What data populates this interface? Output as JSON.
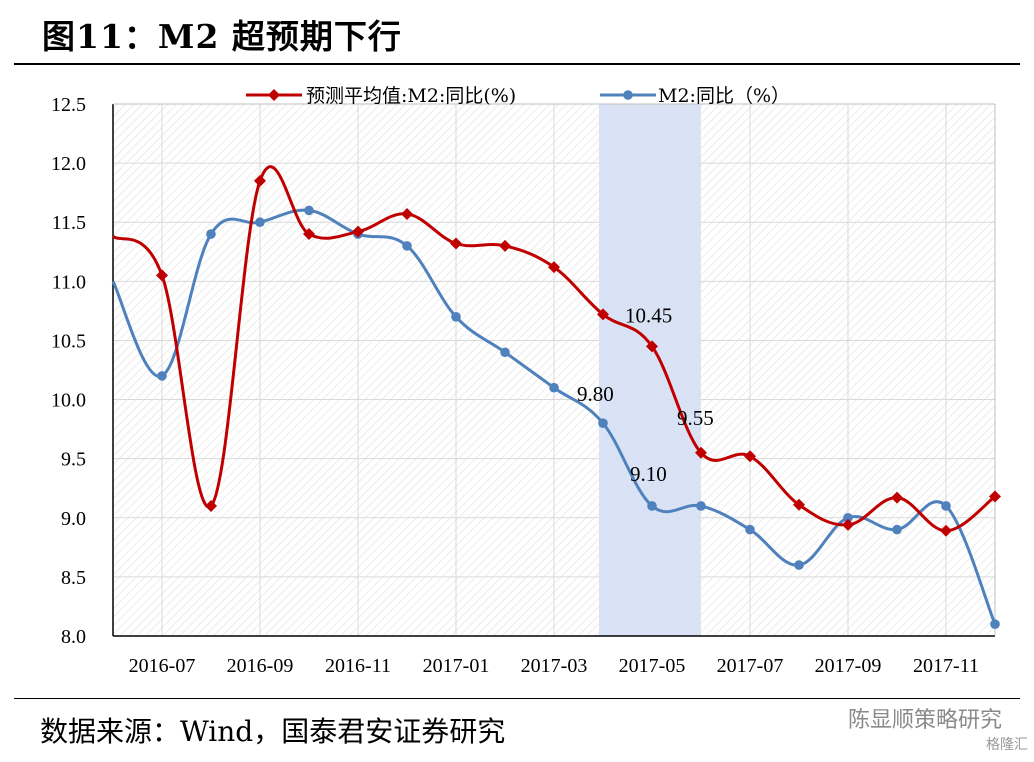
{
  "header": {
    "title": "图11：M2 超预期下行"
  },
  "footer": {
    "source": "数据来源：Wind，国泰君安证券研究",
    "watermark": "陈显顺策略研究",
    "watermark2": "格隆汇"
  },
  "colors": {
    "forecast": "#C00000",
    "actual": "#4F81BD",
    "shade": "#D6E0F5",
    "grid": "#D9D9D9"
  },
  "chart_data": {
    "type": "line",
    "x": [
      "2016-06",
      "2016-07",
      "2016-08",
      "2016-09",
      "2016-10",
      "2016-11",
      "2016-12",
      "2017-01",
      "2017-02",
      "2017-03",
      "2017-04",
      "2017-05",
      "2017-06",
      "2017-07",
      "2017-08",
      "2017-09",
      "2017-10",
      "2017-11",
      "2017-12"
    ],
    "x_tick_labels": [
      "2016-07",
      "2016-09",
      "2016-11",
      "2017-01",
      "2017-03",
      "2017-05",
      "2017-07",
      "2017-09",
      "2017-11"
    ],
    "series": [
      {
        "name": "预测平均值:M2:同比(%)",
        "color": "#C00000",
        "marker": "diamond",
        "values": [
          11.38,
          11.05,
          9.1,
          11.85,
          11.4,
          11.42,
          11.57,
          11.32,
          11.3,
          11.12,
          10.72,
          10.45,
          9.55,
          9.52,
          9.11,
          8.94,
          9.17,
          8.89,
          9.18
        ]
      },
      {
        "name": "M2:同比（%）",
        "color": "#4F81BD",
        "marker": "circle",
        "values": [
          11.0,
          10.2,
          11.4,
          11.5,
          11.6,
          11.4,
          11.3,
          10.7,
          10.4,
          10.1,
          9.8,
          9.1,
          9.1,
          8.9,
          8.6,
          9.0,
          8.9,
          9.1,
          8.1
        ]
      }
    ],
    "annotations": [
      {
        "label": "10.45"
      },
      {
        "label": "9.80"
      },
      {
        "label": "9.55"
      },
      {
        "label": "9.10"
      }
    ],
    "shaded_range": [
      "2017-04",
      "2017-06"
    ],
    "y_tick_labels": [
      "8.0",
      "8.5",
      "9.0",
      "9.5",
      "10.0",
      "10.5",
      "11.0",
      "11.5",
      "12.0",
      "12.5"
    ],
    "ylim": [
      8.0,
      12.5
    ],
    "grid": true,
    "legend": "top"
  }
}
